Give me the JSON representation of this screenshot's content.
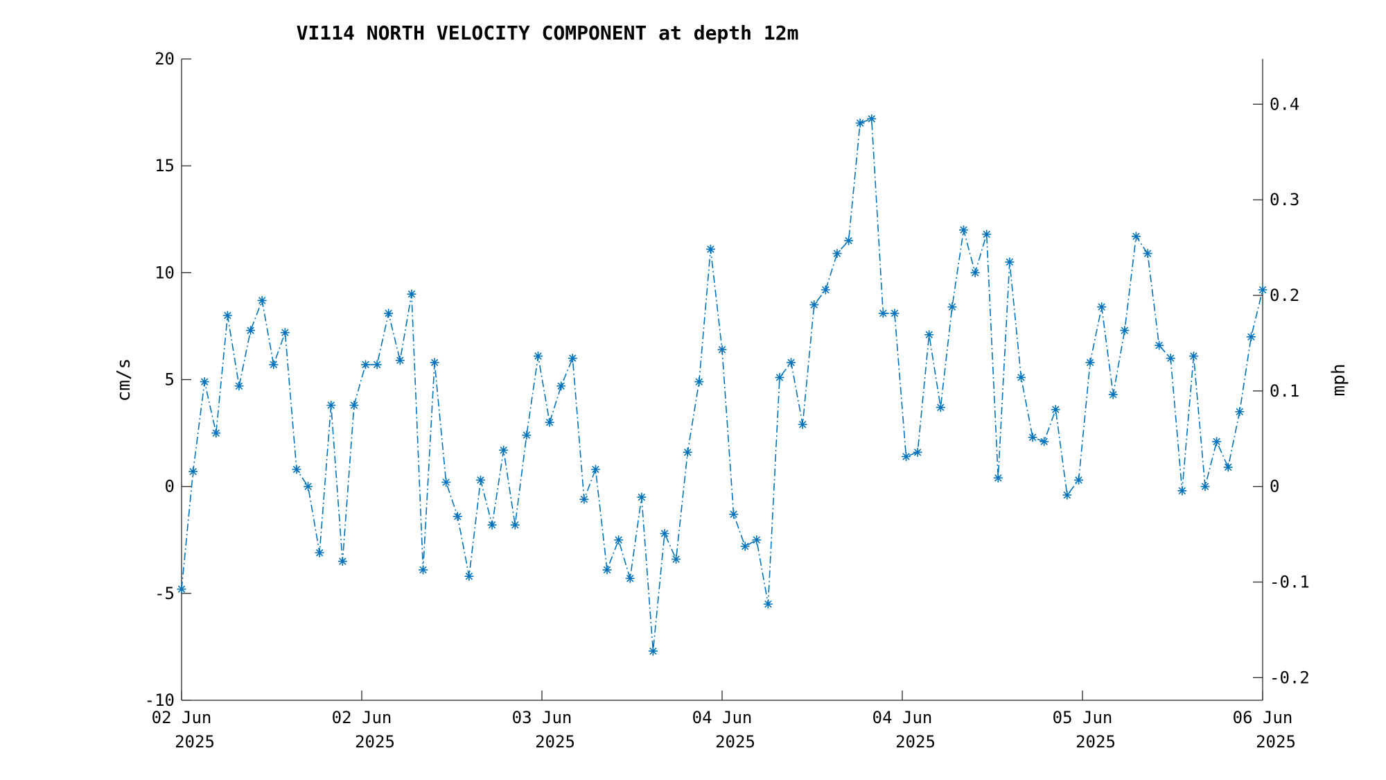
{
  "chart_data": {
    "type": "line",
    "title": "VI114 NORTH VELOCITY COMPONENT at depth 12m",
    "ylabel": "cm/s",
    "y2label": "mph",
    "ylim": [
      -10,
      20
    ],
    "y2lim": [
      -0.2237,
      0.4474
    ],
    "yticks": [
      "20",
      "15",
      "10",
      "5",
      "0",
      "-5",
      "-10"
    ],
    "y2ticks": [
      "0.4",
      "0.3",
      "0.2",
      "0.1",
      "0",
      "-0.1",
      "-0.2"
    ],
    "xticks": [
      {
        "day": "02 Jun",
        "year": "2025"
      },
      {
        "day": "02 Jun",
        "year": "2025"
      },
      {
        "day": "03 Jun",
        "year": "2025"
      },
      {
        "day": "04 Jun",
        "year": "2025"
      },
      {
        "day": "04 Jun",
        "year": "2025"
      },
      {
        "day": "05 Jun",
        "year": "2025"
      },
      {
        "day": "06 Jun",
        "year": "2025"
      }
    ],
    "grid": false,
    "marker": "asterisk",
    "line_style": "dash-dot",
    "series": [
      {
        "values": [
          -4.8,
          0.7,
          4.9,
          2.5,
          8.0,
          4.7,
          7.3,
          8.7,
          5.7,
          7.2,
          0.8,
          0.0,
          -3.1,
          3.8,
          -3.5,
          3.8,
          5.7,
          5.7,
          8.1,
          5.9,
          9.0,
          -3.9,
          5.8,
          0.2,
          -1.4,
          -4.2,
          0.3,
          -1.8,
          1.7,
          -1.8,
          2.4,
          6.1,
          3.0,
          4.7,
          6.0,
          -0.6,
          0.8,
          -3.9,
          -2.5,
          -4.3,
          -0.5,
          -7.7,
          -2.2,
          -3.4,
          1.6,
          4.9,
          11.1,
          6.4,
          -1.3,
          -2.8,
          -2.5,
          -5.5,
          5.1,
          5.8,
          2.9,
          8.5,
          9.2,
          10.9,
          11.5,
          17.0,
          17.2,
          8.1,
          8.1,
          1.4,
          1.6,
          7.1,
          3.7,
          8.4,
          12.0,
          10.0,
          11.8,
          0.4,
          10.5,
          5.1,
          2.3,
          2.1,
          3.6,
          -0.4,
          0.3,
          5.8,
          8.4,
          4.3,
          7.3,
          11.7,
          10.9,
          6.6,
          6.0,
          -0.2,
          6.1,
          0.0,
          2.1,
          0.9,
          3.5,
          7.0,
          9.2
        ]
      }
    ]
  },
  "colors": {
    "series": "#0072BD",
    "axes": "#262626"
  }
}
